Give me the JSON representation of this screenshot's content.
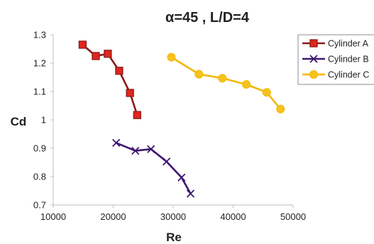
{
  "chart_data": {
    "type": "scatter",
    "title": "α=45 , L/D=4",
    "xlabel": "Re",
    "ylabel": "Cd",
    "xlim": [
      10000,
      50000
    ],
    "ylim": [
      0.7,
      1.3
    ],
    "xticks": [
      "10000",
      "20000",
      "30000",
      "40000",
      "50000"
    ],
    "yticks": [
      "0.7",
      "0.8",
      "0.9",
      "1",
      "1.1",
      "1.2",
      "1.3"
    ],
    "grid": false,
    "legend": "right",
    "series": [
      {
        "name": "Cylinder A",
        "color": "#8B1A1A",
        "marker_color": "#E0261D",
        "marker": "square",
        "x": [
          14900,
          17100,
          19100,
          21000,
          22800,
          24000
        ],
        "y": [
          1.265,
          1.225,
          1.233,
          1.173,
          1.095,
          1.017
        ]
      },
      {
        "name": "Cylinder B",
        "color": "#3E1670",
        "marker_color": "#3E1670",
        "marker": "x",
        "x": [
          20500,
          23700,
          26300,
          28900,
          31400,
          32900
        ],
        "y": [
          0.919,
          0.891,
          0.897,
          0.853,
          0.797,
          0.74
        ]
      },
      {
        "name": "Cylinder C",
        "color": "#F2B705",
        "marker_color": "#F7C21A",
        "marker": "circle",
        "x": [
          29700,
          34300,
          38200,
          42200,
          45600,
          47900
        ],
        "y": [
          1.221,
          1.161,
          1.147,
          1.125,
          1.097,
          1.038
        ]
      }
    ]
  }
}
